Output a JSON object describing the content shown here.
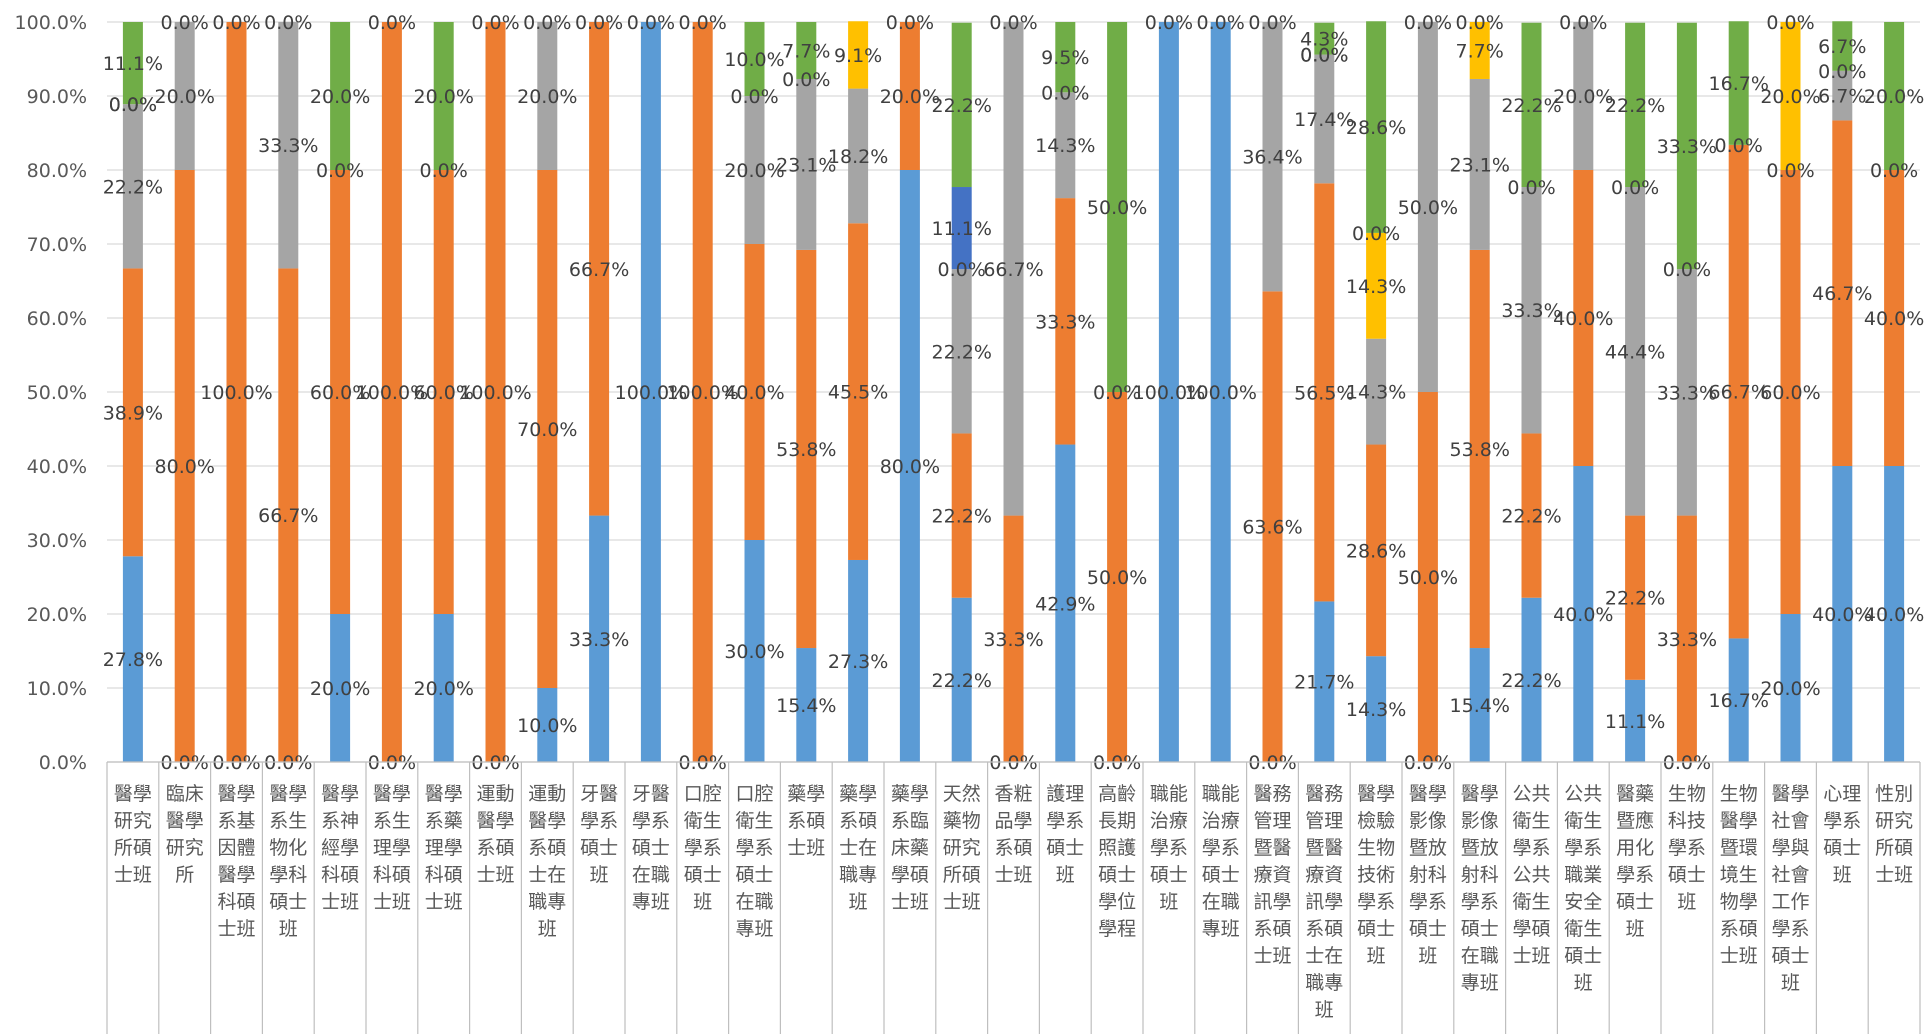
{
  "chart_data": {
    "type": "bar",
    "stacked": true,
    "percent": true,
    "ylim": [
      0,
      100
    ],
    "y_ticks": [
      "0.0%",
      "10.0%",
      "20.0%",
      "30.0%",
      "40.0%",
      "50.0%",
      "60.0%",
      "70.0%",
      "80.0%",
      "90.0%",
      "100.0%"
    ],
    "grid": true,
    "legend": "none",
    "colors": [
      "#5b9bd5",
      "#ed7d31",
      "#a5a5a5",
      "#ffc000",
      "#4472c4",
      "#70ad47"
    ],
    "categories": [
      {
        "lines": [
          "醫學",
          "研究",
          "所碩",
          "士班"
        ]
      },
      {
        "lines": [
          "臨床",
          "醫學",
          "研究",
          "所"
        ]
      },
      {
        "lines": [
          "醫學",
          "系基",
          "因體",
          "醫學",
          "科碩",
          "士班"
        ]
      },
      {
        "lines": [
          "醫學",
          "系生",
          "物化",
          "學科",
          "碩士",
          "班"
        ]
      },
      {
        "lines": [
          "醫學",
          "系神",
          "經學",
          "科碩",
          "士班"
        ]
      },
      {
        "lines": [
          "醫學",
          "系生",
          "理學",
          "科碩",
          "士班"
        ]
      },
      {
        "lines": [
          "醫學",
          "系藥",
          "理學",
          "科碩",
          "士班"
        ]
      },
      {
        "lines": [
          "運動",
          "醫學",
          "系碩",
          "士班"
        ]
      },
      {
        "lines": [
          "運動",
          "醫學",
          "系碩",
          "士在",
          "職專",
          "班"
        ]
      },
      {
        "lines": [
          "牙醫",
          "學系",
          "碩士",
          "班"
        ]
      },
      {
        "lines": [
          "牙醫",
          "學系",
          "碩士",
          "在職",
          "專班"
        ]
      },
      {
        "lines": [
          "口腔",
          "衛生",
          "學系",
          "碩士",
          "班"
        ]
      },
      {
        "lines": [
          "口腔",
          "衛生",
          "學系",
          "碩士",
          "在職",
          "專班"
        ]
      },
      {
        "lines": [
          "藥學",
          "系碩",
          "士班"
        ]
      },
      {
        "lines": [
          "藥學",
          "系碩",
          "士在",
          "職專",
          "班"
        ]
      },
      {
        "lines": [
          "藥學",
          "系臨",
          "床藥",
          "學碩",
          "士班"
        ]
      },
      {
        "lines": [
          "天然",
          "藥物",
          "研究",
          "所碩",
          "士班"
        ]
      },
      {
        "lines": [
          "香粧",
          "品學",
          "系碩",
          "士班"
        ]
      },
      {
        "lines": [
          "護理",
          "學系",
          "碩士",
          "班"
        ]
      },
      {
        "lines": [
          "高齡",
          "長期",
          "照護",
          "碩士",
          "學位",
          "學程"
        ]
      },
      {
        "lines": [
          "職能",
          "治療",
          "學系",
          "碩士",
          "班"
        ]
      },
      {
        "lines": [
          "職能",
          "治療",
          "學系",
          "碩士",
          "在職",
          "專班"
        ]
      },
      {
        "lines": [
          "醫務",
          "管理",
          "暨醫",
          "療資",
          "訊學",
          "系碩",
          "士班"
        ]
      },
      {
        "lines": [
          "醫務",
          "管理",
          "暨醫",
          "療資",
          "訊學",
          "系碩",
          "士在",
          "職專",
          "班"
        ]
      },
      {
        "lines": [
          "醫學",
          "檢驗",
          "生物",
          "技術",
          "學系",
          "碩士",
          "班"
        ]
      },
      {
        "lines": [
          "醫學",
          "影像",
          "暨放",
          "射科",
          "學系",
          "碩士",
          "班"
        ]
      },
      {
        "lines": [
          "醫學",
          "影像",
          "暨放",
          "射科",
          "學系",
          "碩士",
          "在職",
          "專班"
        ]
      },
      {
        "lines": [
          "公共",
          "衛生",
          "學系",
          "公共",
          "衛生",
          "學碩",
          "士班"
        ]
      },
      {
        "lines": [
          "公共",
          "衛生",
          "學系",
          "職業",
          "安全",
          "衛生",
          "碩士",
          "班"
        ]
      },
      {
        "lines": [
          "醫藥",
          "暨應",
          "用化",
          "學系",
          "碩士",
          "班"
        ]
      },
      {
        "lines": [
          "生物",
          "科技",
          "學系",
          "碩士",
          "班"
        ]
      },
      {
        "lines": [
          "生物",
          "醫學",
          "暨環",
          "境生",
          "物學",
          "系碩",
          "士班"
        ]
      },
      {
        "lines": [
          "醫學",
          "社會",
          "學與",
          "社會",
          "工作",
          "學系",
          "碩士",
          "班"
        ]
      },
      {
        "lines": [
          "心理",
          "學系",
          "碩士",
          "班"
        ]
      },
      {
        "lines": [
          "性別",
          "研究",
          "所碩",
          "士班"
        ]
      }
    ],
    "stacks": [
      [
        {
          "v": 27.8,
          "c": 0,
          "l": "27.8%"
        },
        {
          "v": 38.9,
          "c": 1,
          "l": "38.9%"
        },
        {
          "v": 22.2,
          "c": 2,
          "l": "22.2%"
        },
        {
          "v": 0,
          "c": 3,
          "l": "0.0%"
        },
        {
          "v": 0,
          "c": 4,
          "l": "0.0%"
        },
        {
          "v": 11.1,
          "c": 5,
          "l": "11.1%"
        }
      ],
      [
        {
          "v": 0,
          "c": 0,
          "l": "0.0%"
        },
        {
          "v": 80,
          "c": 1,
          "l": "80.0%"
        },
        {
          "v": 20,
          "c": 2,
          "l": "20.0%"
        },
        {
          "v": 0,
          "c": 3,
          "l": "0.0%"
        }
      ],
      [
        {
          "v": 0,
          "c": 0,
          "l": "0.0%"
        },
        {
          "v": 100,
          "c": 1,
          "l": "100.0%"
        },
        {
          "v": 0,
          "c": 2,
          "l": "0.0%"
        }
      ],
      [
        {
          "v": 0,
          "c": 0,
          "l": "0.0%"
        },
        {
          "v": 66.7,
          "c": 1,
          "l": "66.7%"
        },
        {
          "v": 33.3,
          "c": 2,
          "l": "33.3%"
        },
        {
          "v": 0,
          "c": 3,
          "l": "0.0%"
        }
      ],
      [
        {
          "v": 20,
          "c": 0,
          "l": "20.0%"
        },
        {
          "v": 60,
          "c": 1,
          "l": "60.0%"
        },
        {
          "v": 0,
          "c": 2,
          "l": "0.0%"
        },
        {
          "v": 20,
          "c": 5,
          "l": "20.0%"
        }
      ],
      [
        {
          "v": 0,
          "c": 0,
          "l": "0.0%"
        },
        {
          "v": 100,
          "c": 1,
          "l": "100.0%"
        },
        {
          "v": 0,
          "c": 2,
          "l": "0.0%"
        }
      ],
      [
        {
          "v": 20,
          "c": 0,
          "l": "20.0%"
        },
        {
          "v": 60,
          "c": 1,
          "l": "60.0%"
        },
        {
          "v": 0,
          "c": 2,
          "l": "0.0%"
        },
        {
          "v": 20,
          "c": 5,
          "l": "20.0%"
        }
      ],
      [
        {
          "v": 0,
          "c": 0,
          "l": "0.0%"
        },
        {
          "v": 100,
          "c": 1,
          "l": "100.0%"
        },
        {
          "v": 0,
          "c": 2,
          "l": "0.0%"
        }
      ],
      [
        {
          "v": 10,
          "c": 0,
          "l": "10.0%"
        },
        {
          "v": 70,
          "c": 1,
          "l": "70.0%"
        },
        {
          "v": 20,
          "c": 2,
          "l": "20.0%"
        },
        {
          "v": 0,
          "c": 3,
          "l": "0.0%"
        }
      ],
      [
        {
          "v": 33.3,
          "c": 0,
          "l": "33.3%"
        },
        {
          "v": 66.7,
          "c": 1,
          "l": "66.7%"
        },
        {
          "v": 0,
          "c": 2,
          "l": "0.0%"
        }
      ],
      [
        {
          "v": 100,
          "c": 0,
          "l": "100.0%"
        },
        {
          "v": 0,
          "c": 1,
          "l": "0.0%"
        }
      ],
      [
        {
          "v": 0,
          "c": 0,
          "l": "0.0%"
        },
        {
          "v": 100,
          "c": 1,
          "l": "100.0%"
        },
        {
          "v": 0,
          "c": 2,
          "l": "0.0%"
        }
      ],
      [
        {
          "v": 30,
          "c": 0,
          "l": "30.0%"
        },
        {
          "v": 40,
          "c": 1,
          "l": "40.0%"
        },
        {
          "v": 20,
          "c": 2,
          "l": "20.0%"
        },
        {
          "v": 0,
          "c": 3,
          "l": "0.0%"
        },
        {
          "v": 10,
          "c": 5,
          "l": "10.0%"
        }
      ],
      [
        {
          "v": 15.4,
          "c": 0,
          "l": "15.4%"
        },
        {
          "v": 53.8,
          "c": 1,
          "l": "53.8%"
        },
        {
          "v": 23.1,
          "c": 2,
          "l": "23.1%"
        },
        {
          "v": 0,
          "c": 3,
          "l": "0.0%"
        },
        {
          "v": 7.7,
          "c": 5,
          "l": "7.7%"
        }
      ],
      [
        {
          "v": 27.3,
          "c": 0,
          "l": "27.3%"
        },
        {
          "v": 45.5,
          "c": 1,
          "l": "45.5%"
        },
        {
          "v": 18.2,
          "c": 2,
          "l": "18.2%"
        },
        {
          "v": 9.1,
          "c": 3,
          "l": "9.1%"
        }
      ],
      [
        {
          "v": 80,
          "c": 0,
          "l": "80.0%"
        },
        {
          "v": 20,
          "c": 1,
          "l": "20.0%"
        },
        {
          "v": 0,
          "c": 2,
          "l": "0.0%"
        }
      ],
      [
        {
          "v": 22.2,
          "c": 0,
          "l": "22.2%"
        },
        {
          "v": 22.2,
          "c": 1,
          "l": "22.2%"
        },
        {
          "v": 22.2,
          "c": 2,
          "l": "22.2%"
        },
        {
          "v": 0,
          "c": 3,
          "l": "0.0%"
        },
        {
          "v": 11.1,
          "c": 4,
          "l": "11.1%"
        },
        {
          "v": 22.2,
          "c": 5,
          "l": "22.2%"
        }
      ],
      [
        {
          "v": 0,
          "c": 0,
          "l": "0.0%"
        },
        {
          "v": 33.3,
          "c": 1,
          "l": "33.3%"
        },
        {
          "v": 66.7,
          "c": 2,
          "l": "66.7%"
        },
        {
          "v": 0,
          "c": 3,
          "l": "0.0%"
        }
      ],
      [
        {
          "v": 42.9,
          "c": 0,
          "l": "42.9%"
        },
        {
          "v": 33.3,
          "c": 1,
          "l": "33.3%"
        },
        {
          "v": 14.3,
          "c": 2,
          "l": "14.3%"
        },
        {
          "v": 0,
          "c": 3,
          "l": "0.0%"
        },
        {
          "v": 9.5,
          "c": 5,
          "l": "9.5%"
        }
      ],
      [
        {
          "v": 0,
          "c": 0,
          "l": "0.0%"
        },
        {
          "v": 50,
          "c": 1,
          "l": "50.0%"
        },
        {
          "v": 0,
          "c": 2,
          "l": "0.0%"
        },
        {
          "v": 50,
          "c": 5,
          "l": "50.0%"
        }
      ],
      [
        {
          "v": 100,
          "c": 0,
          "l": "100.0%"
        },
        {
          "v": 0,
          "c": 1,
          "l": "0.0%"
        }
      ],
      [
        {
          "v": 100,
          "c": 0,
          "l": "100.0%"
        },
        {
          "v": 0,
          "c": 1,
          "l": "0.0%"
        }
      ],
      [
        {
          "v": 0,
          "c": 0,
          "l": "0.0%"
        },
        {
          "v": 63.6,
          "c": 1,
          "l": "63.6%"
        },
        {
          "v": 36.4,
          "c": 2,
          "l": "36.4%"
        },
        {
          "v": 0,
          "c": 3,
          "l": "0.0%"
        }
      ],
      [
        {
          "v": 21.7,
          "c": 0,
          "l": "21.7%"
        },
        {
          "v": 56.5,
          "c": 1,
          "l": "56.5%"
        },
        {
          "v": 17.4,
          "c": 2,
          "l": "17.4%"
        },
        {
          "v": 0,
          "c": 3,
          "l": "0.0%"
        },
        {
          "v": 0,
          "c": 4,
          "l": "0.0%"
        },
        {
          "v": 4.3,
          "c": 5,
          "l": "4.3%"
        }
      ],
      [
        {
          "v": 14.3,
          "c": 0,
          "l": "14.3%"
        },
        {
          "v": 28.6,
          "c": 1,
          "l": "28.6%"
        },
        {
          "v": 14.3,
          "c": 2,
          "l": "14.3%"
        },
        {
          "v": 14.3,
          "c": 3,
          "l": "14.3%"
        },
        {
          "v": 0,
          "c": 4,
          "l": "0.0%"
        },
        {
          "v": 28.6,
          "c": 5,
          "l": "28.6%"
        }
      ],
      [
        {
          "v": 0,
          "c": 0,
          "l": "0.0%"
        },
        {
          "v": 50,
          "c": 1,
          "l": "50.0%"
        },
        {
          "v": 50,
          "c": 2,
          "l": "50.0%"
        },
        {
          "v": 0,
          "c": 3,
          "l": "0.0%"
        }
      ],
      [
        {
          "v": 15.4,
          "c": 0,
          "l": "15.4%"
        },
        {
          "v": 53.8,
          "c": 1,
          "l": "53.8%"
        },
        {
          "v": 23.1,
          "c": 2,
          "l": "23.1%"
        },
        {
          "v": 7.7,
          "c": 3,
          "l": "7.7%"
        },
        {
          "v": 0,
          "c": 4,
          "l": "0.0%"
        }
      ],
      [
        {
          "v": 22.2,
          "c": 0,
          "l": "22.2%"
        },
        {
          "v": 22.2,
          "c": 1,
          "l": "22.2%"
        },
        {
          "v": 33.3,
          "c": 2,
          "l": "33.3%"
        },
        {
          "v": 0,
          "c": 3,
          "l": "0.0%"
        },
        {
          "v": 22.2,
          "c": 5,
          "l": "22.2%"
        }
      ],
      [
        {
          "v": 40,
          "c": 0,
          "l": "40.0%"
        },
        {
          "v": 40,
          "c": 1,
          "l": "40.0%"
        },
        {
          "v": 20,
          "c": 2,
          "l": "20.0%"
        },
        {
          "v": 0,
          "c": 3,
          "l": "0.0%"
        }
      ],
      [
        {
          "v": 11.1,
          "c": 0,
          "l": "11.1%"
        },
        {
          "v": 22.2,
          "c": 1,
          "l": "22.2%"
        },
        {
          "v": 44.4,
          "c": 2,
          "l": "44.4%"
        },
        {
          "v": 0,
          "c": 3,
          "l": "0.0%"
        },
        {
          "v": 22.2,
          "c": 5,
          "l": "22.2%"
        }
      ],
      [
        {
          "v": 0,
          "c": 0,
          "l": "0.0%"
        },
        {
          "v": 33.3,
          "c": 1,
          "l": "33.3%"
        },
        {
          "v": 33.3,
          "c": 2,
          "l": "33.3%"
        },
        {
          "v": 0,
          "c": 3,
          "l": "0.0%"
        },
        {
          "v": 33.3,
          "c": 5,
          "l": "33.3%"
        }
      ],
      [
        {
          "v": 16.7,
          "c": 0,
          "l": "16.7%"
        },
        {
          "v": 66.7,
          "c": 1,
          "l": "66.7%"
        },
        {
          "v": 0,
          "c": 2,
          "l": "0.0%"
        },
        {
          "v": 16.7,
          "c": 5,
          "l": "16.7%"
        }
      ],
      [
        {
          "v": 20,
          "c": 0,
          "l": "20.0%"
        },
        {
          "v": 60,
          "c": 1,
          "l": "60.0%"
        },
        {
          "v": 0,
          "c": 2,
          "l": "0.0%"
        },
        {
          "v": 20,
          "c": 3,
          "l": "20.0%"
        },
        {
          "v": 0,
          "c": 4,
          "l": "0.0%"
        }
      ],
      [
        {
          "v": 40,
          "c": 0,
          "l": "40.0%"
        },
        {
          "v": 46.7,
          "c": 1,
          "l": "46.7%"
        },
        {
          "v": 6.7,
          "c": 2,
          "l": "6.7%"
        },
        {
          "v": 0,
          "c": 3,
          "l": "0.0%"
        },
        {
          "v": 6.7,
          "c": 5,
          "l": "6.7%"
        }
      ],
      [
        {
          "v": 40,
          "c": 0,
          "l": "40.0%"
        },
        {
          "v": 40,
          "c": 1,
          "l": "40.0%"
        },
        {
          "v": 0,
          "c": 2,
          "l": "0.0%"
        },
        {
          "v": 20,
          "c": 5,
          "l": "20.0%"
        }
      ]
    ]
  }
}
